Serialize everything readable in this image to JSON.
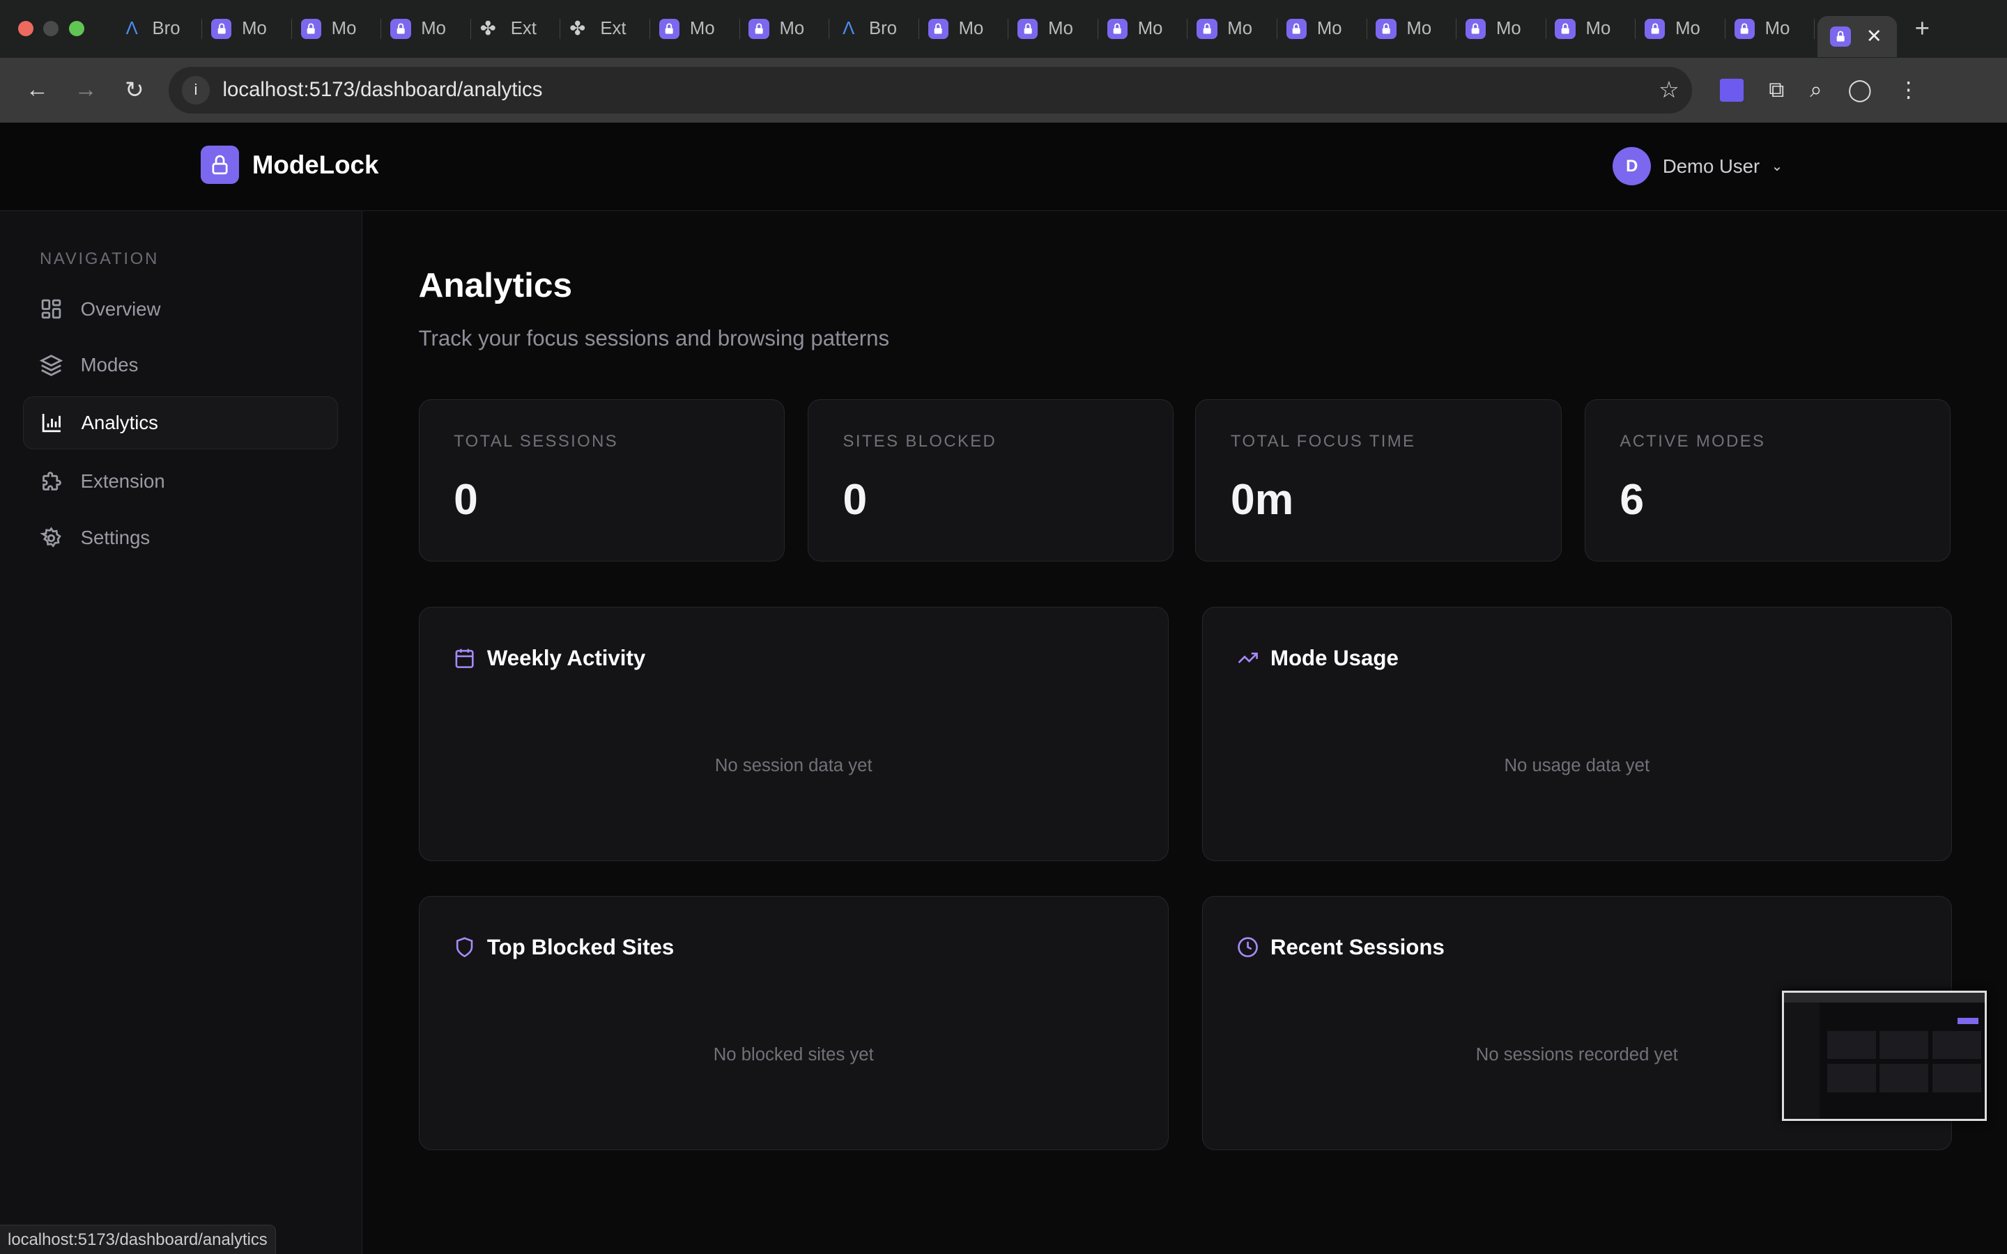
{
  "browser": {
    "tabs": [
      {
        "label": "Bro",
        "icon": "arc-icon"
      },
      {
        "label": "Mo",
        "icon": "lock-icon"
      },
      {
        "label": "Mo",
        "icon": "lock-icon"
      },
      {
        "label": "Mo",
        "icon": "lock-icon"
      },
      {
        "label": "Ext",
        "icon": "puzzle-icon"
      },
      {
        "label": "Ext",
        "icon": "puzzle-icon"
      },
      {
        "label": "Mo",
        "icon": "lock-icon"
      },
      {
        "label": "Mo",
        "icon": "lock-icon"
      },
      {
        "label": "Bro",
        "icon": "arc-icon"
      },
      {
        "label": "Mo",
        "icon": "lock-icon"
      },
      {
        "label": "Mo",
        "icon": "lock-icon"
      },
      {
        "label": "Mo",
        "icon": "lock-icon"
      },
      {
        "label": "Mo",
        "icon": "lock-icon"
      },
      {
        "label": "Mo",
        "icon": "lock-icon"
      },
      {
        "label": "Mo",
        "icon": "lock-icon"
      },
      {
        "label": "Mo",
        "icon": "lock-icon"
      },
      {
        "label": "Mo",
        "icon": "lock-icon"
      },
      {
        "label": "Mo",
        "icon": "lock-icon"
      },
      {
        "label": "Mo",
        "icon": "lock-icon"
      }
    ],
    "url": "localhost:5173/dashboard/analytics",
    "status_url": "localhost:5173/dashboard/analytics"
  },
  "app": {
    "name": "ModeLock",
    "brand_color": "#7b68ee",
    "user": {
      "initial": "D",
      "name": "Demo User"
    }
  },
  "sidebar": {
    "title": "NAVIGATION",
    "items": [
      {
        "label": "Overview",
        "icon": "grid-icon"
      },
      {
        "label": "Modes",
        "icon": "layers-icon"
      },
      {
        "label": "Analytics",
        "icon": "bar-chart-icon",
        "active": true
      },
      {
        "label": "Extension",
        "icon": "puzzle-icon"
      },
      {
        "label": "Settings",
        "icon": "gear-icon"
      }
    ]
  },
  "page": {
    "title": "Analytics",
    "subtitle": "Track your focus sessions and browsing patterns"
  },
  "stats": [
    {
      "label": "TOTAL SESSIONS",
      "value": "0"
    },
    {
      "label": "SITES BLOCKED",
      "value": "0"
    },
    {
      "label": "TOTAL FOCUS TIME",
      "value": "0m"
    },
    {
      "label": "ACTIVE MODES",
      "value": "6"
    }
  ],
  "panels": [
    {
      "title": "Weekly Activity",
      "icon": "calendar-icon",
      "empty": "No session data yet"
    },
    {
      "title": "Mode Usage",
      "icon": "trending-up-icon",
      "empty": "No usage data yet"
    },
    {
      "title": "Top Blocked Sites",
      "icon": "shield-icon",
      "empty": "No blocked sites yet"
    },
    {
      "title": "Recent Sessions",
      "icon": "clock-icon",
      "empty": "No sessions recorded yet"
    }
  ]
}
